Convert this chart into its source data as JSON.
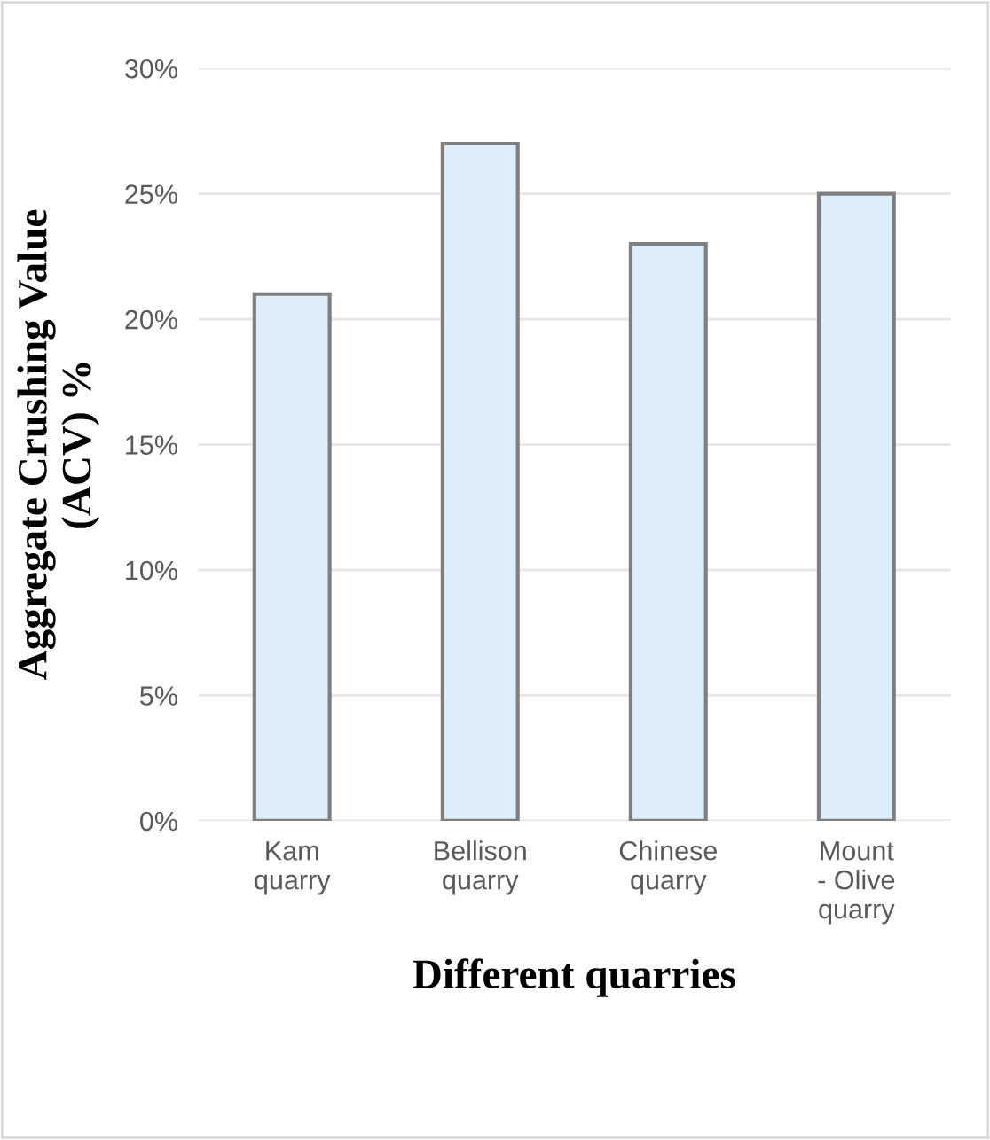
{
  "chart_data": {
    "type": "bar",
    "categories": [
      "Kam\nquarry",
      "Bellison\nquarry",
      "Chinese\nquarry",
      "Mount\n- Olive\nquarry"
    ],
    "values": [
      21,
      27,
      23,
      25
    ],
    "color": "#ddedf9",
    "xlabel": "Different quarries",
    "ylabel": "Aggregate Crushing Value\n(ACV) %",
    "ylim": [
      0,
      30
    ],
    "yticks": [
      {
        "value": 0,
        "label": "0%"
      },
      {
        "value": 5,
        "label": "5%"
      },
      {
        "value": 10,
        "label": "10%"
      },
      {
        "value": 15,
        "label": "15%"
      },
      {
        "value": 20,
        "label": "20%"
      },
      {
        "value": 25,
        "label": "25%"
      },
      {
        "value": 30,
        "label": "30%"
      }
    ],
    "grid": "y"
  }
}
